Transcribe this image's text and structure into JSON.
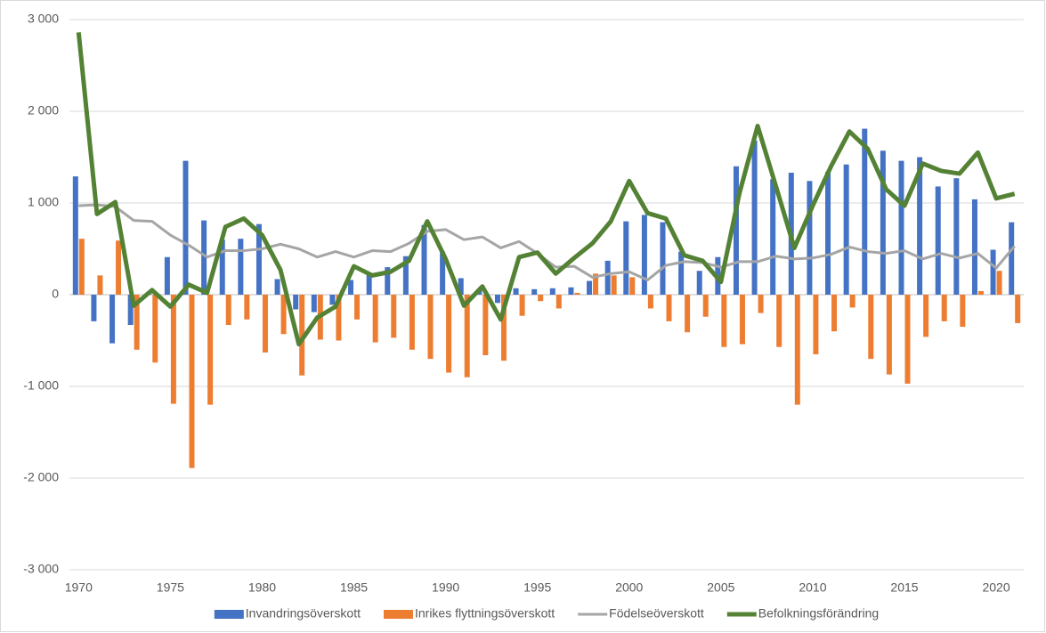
{
  "chart_data": {
    "type": "combo",
    "x": [
      1970,
      1971,
      1972,
      1973,
      1974,
      1975,
      1976,
      1977,
      1978,
      1979,
      1980,
      1981,
      1982,
      1983,
      1984,
      1985,
      1986,
      1987,
      1988,
      1989,
      1990,
      1991,
      1992,
      1993,
      1994,
      1995,
      1996,
      1997,
      1998,
      1999,
      2000,
      2001,
      2002,
      2003,
      2004,
      2005,
      2006,
      2007,
      2008,
      2009,
      2010,
      2011,
      2012,
      2013,
      2014,
      2015,
      2016,
      2017,
      2018,
      2019,
      2020,
      2021
    ],
    "xlim": [
      1969.5,
      2021.5
    ],
    "xticks": [
      1970,
      1975,
      1980,
      1985,
      1990,
      1995,
      2000,
      2005,
      2010,
      2015,
      2020
    ],
    "ylim": [
      -3000,
      3000
    ],
    "yticks": [
      {
        "value": -3000,
        "label": "-3 000"
      },
      {
        "value": -2000,
        "label": "-2 000"
      },
      {
        "value": -1000,
        "label": "-1 000"
      },
      0,
      {
        "value": 1000,
        "label": "1 000"
      },
      {
        "value": 2000,
        "label": "2 000"
      },
      {
        "value": 3000,
        "label": "3 000"
      }
    ],
    "grid": true,
    "legend": "bottom",
    "series": [
      {
        "name": "Invandringsöverskott",
        "type": "bar",
        "color": "#4472c4",
        "values": [
          1290,
          -290,
          -530,
          -330,
          30,
          410,
          1460,
          810,
          600,
          610,
          770,
          170,
          -160,
          -190,
          -110,
          160,
          240,
          300,
          420,
          760,
          470,
          180,
          60,
          -90,
          70,
          60,
          70,
          80,
          150,
          370,
          800,
          870,
          790,
          470,
          260,
          410,
          1400,
          1680,
          1260,
          1330,
          1240,
          1340,
          1420,
          1810,
          1570,
          1460,
          1500,
          1180,
          1270,
          1040,
          490,
          790
        ]
      },
      {
        "name": "Inrikes flyttningsöverskott",
        "type": "bar",
        "color": "#ed7d31",
        "values": [
          610,
          210,
          590,
          -600,
          -740,
          -1190,
          -1890,
          -1200,
          -330,
          -270,
          -630,
          -430,
          -880,
          -490,
          -500,
          -270,
          -520,
          -470,
          -600,
          -700,
          -850,
          -900,
          -660,
          -720,
          -230,
          -70,
          -150,
          20,
          230,
          210,
          190,
          -150,
          -290,
          -410,
          -240,
          -570,
          -540,
          -200,
          -570,
          -1200,
          -650,
          -400,
          -140,
          -700,
          -870,
          -970,
          -460,
          -290,
          -350,
          40,
          260,
          -310
        ]
      },
      {
        "name": "Födelseöverskott",
        "type": "line",
        "color": "#a5a5a5",
        "line_width": 3,
        "values": [
          970,
          980,
          960,
          810,
          800,
          650,
          540,
          410,
          480,
          480,
          500,
          550,
          500,
          410,
          470,
          410,
          480,
          470,
          560,
          690,
          710,
          600,
          630,
          510,
          580,
          450,
          300,
          310,
          190,
          230,
          250,
          160,
          320,
          360,
          350,
          300,
          360,
          360,
          420,
          390,
          400,
          440,
          520,
          470,
          450,
          480,
          390,
          450,
          400,
          450,
          290,
          530
        ]
      },
      {
        "name": "Befolkningsförändring",
        "type": "line",
        "color": "#548235",
        "line_width": 5,
        "values": [
          2860,
          880,
          1010,
          -120,
          50,
          -130,
          110,
          20,
          740,
          830,
          650,
          270,
          -540,
          -250,
          -130,
          310,
          210,
          250,
          370,
          800,
          390,
          -120,
          90,
          -270,
          410,
          460,
          230,
          400,
          560,
          800,
          1240,
          890,
          830,
          430,
          370,
          140,
          1100,
          1840,
          1180,
          510,
          970,
          1400,
          1780,
          1590,
          1150,
          970,
          1430,
          1350,
          1320,
          1550,
          1050,
          1100
        ]
      }
    ]
  }
}
